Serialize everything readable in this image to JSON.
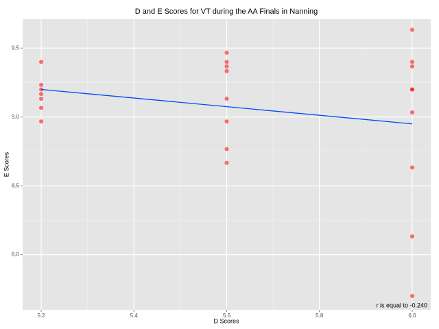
{
  "chart_data": {
    "type": "scatter",
    "title": "D and E Scores for VT during the AA Finals in Nanning",
    "x_label": "D Scores",
    "y_label": "E Scores",
    "annotation": "r is equal to -0.240",
    "series": [
      {
        "color": "#ff0000",
        "x": [
          5.2,
          5.2,
          5.2,
          5.2,
          5.2,
          5.2,
          5.2,
          5.6,
          5.6,
          5.6,
          5.6,
          5.6,
          5.6,
          5.6,
          5.6,
          6.0,
          6.0,
          6.0,
          6.0,
          6.0,
          6.0,
          6.0,
          6.0,
          6.0
        ],
        "values": [
          9.4,
          9.233,
          9.2,
          9.167,
          9.133,
          9.067,
          8.967,
          9.467,
          9.4,
          9.367,
          9.333,
          9.133,
          8.967,
          8.767,
          8.667,
          9.633,
          9.4,
          9.367,
          9.2,
          9.2,
          9.033,
          8.633,
          8.133,
          7.7
        ]
      }
    ],
    "trend_line": {
      "color": "#0047ff",
      "x": [
        5.2,
        6.0
      ],
      "values": [
        9.2,
        8.95
      ]
    },
    "xlim": [
      5.16,
      6.04
    ],
    "xticks": [
      5.2,
      5.4,
      5.6,
      5.8,
      {
        "value": 6.0,
        "label": "6.0"
      }
    ],
    "ylim": [
      7.6,
      9.71
    ],
    "yticks": [
      9.5,
      {
        "value": 9.0,
        "label": "9.0"
      },
      8.5,
      {
        "value": 8.0,
        "label": "8.0"
      }
    ],
    "grid": true
  }
}
